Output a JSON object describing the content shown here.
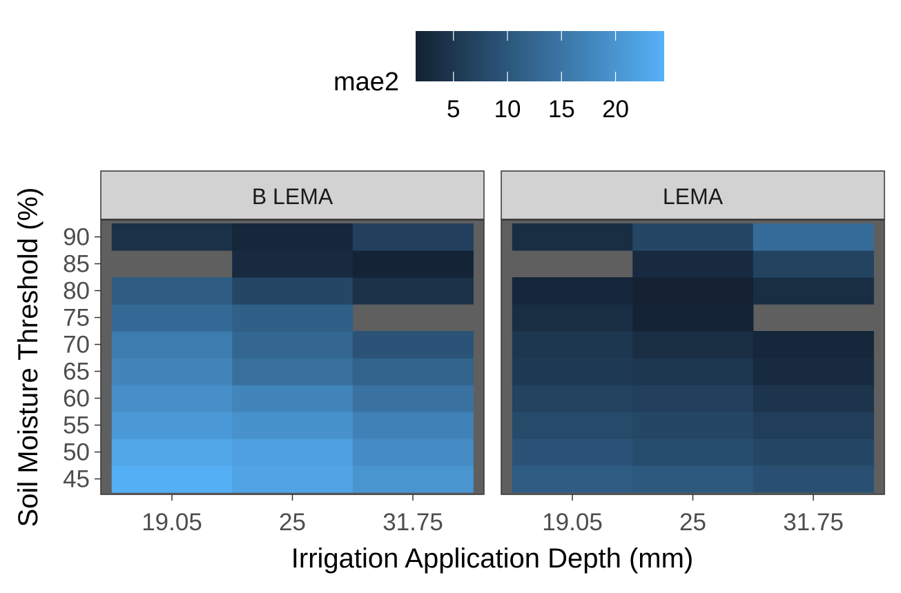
{
  "chart_data": {
    "type": "heatmap",
    "title": "",
    "xlabel": "Irrigation Application Depth (mm)",
    "ylabel": "Soil Moisture Threshold (%)",
    "x_categories": [
      "19.05",
      "25",
      "31.75"
    ],
    "y_categories": [
      "45",
      "50",
      "55",
      "60",
      "65",
      "70",
      "75",
      "80",
      "85",
      "90"
    ],
    "color_scale": {
      "title": "mae2",
      "low": 1.5,
      "high": 24.5,
      "ticks": [
        5,
        10,
        15,
        20
      ],
      "low_color": "#132132",
      "high_color": "#56B1F7",
      "na_color": "#5F5F5F"
    },
    "panels": [
      {
        "label": "B LEMA",
        "values": [
          [
            24.2,
            22.5,
            20.0
          ],
          [
            22.8,
            21.8,
            18.5
          ],
          [
            20.5,
            19.5,
            17.0
          ],
          [
            19.0,
            17.5,
            14.5
          ],
          [
            17.5,
            14.0,
            12.0
          ],
          [
            16.0,
            12.5,
            9.5
          ],
          [
            13.0,
            11.5,
            null
          ],
          [
            11.0,
            7.5,
            4.0
          ],
          [
            null,
            3.0,
            2.0
          ],
          [
            4.0,
            2.5,
            6.5
          ]
        ]
      },
      {
        "label": "LEMA",
        "values": [
          [
            11.0,
            10.5,
            9.0
          ],
          [
            9.5,
            8.5,
            7.5
          ],
          [
            8.0,
            7.5,
            6.0
          ],
          [
            7.0,
            6.5,
            4.5
          ],
          [
            5.5,
            5.0,
            3.0
          ],
          [
            5.0,
            3.5,
            2.5
          ],
          [
            3.5,
            1.8,
            null
          ],
          [
            2.5,
            1.5,
            3.5
          ],
          [
            null,
            3.0,
            7.0
          ],
          [
            3.5,
            7.5,
            13.5
          ]
        ]
      }
    ]
  }
}
